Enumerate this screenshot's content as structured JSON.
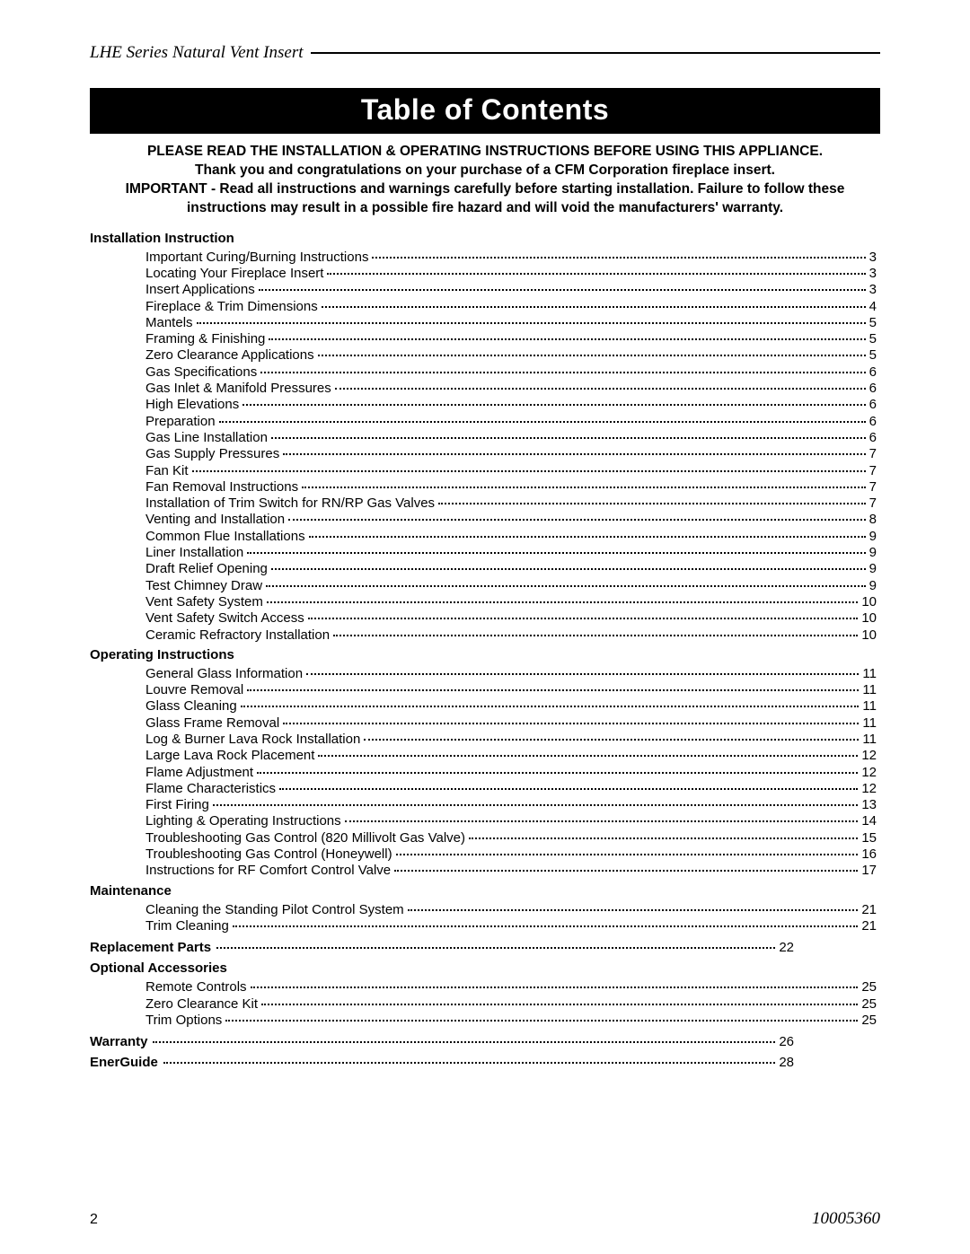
{
  "header": {
    "title": "LHE Series Natural Vent Insert"
  },
  "banner": "Table of Contents",
  "intro": {
    "line1": "PLEASE READ THE INSTALLATION & OPERATING INSTRUCTIONS BEFORE USING THIS APPLIANCE.",
    "line2": "Thank you and congratulations on your purchase of a CFM Corporation fireplace insert.",
    "line3": "IMPORTANT - Read all instructions and warnings carefully before starting installation. Failure to follow these",
    "line4": "instructions may result in a possible fire hazard and will void the manufacturers' warranty."
  },
  "sections": {
    "installation": {
      "heading": "Installation Instruction",
      "items": [
        {
          "label": "Important Curing/Burning Instructions",
          "page": "3"
        },
        {
          "label": "Locating Your Fireplace Insert",
          "page": "3"
        },
        {
          "label": "Insert Applications",
          "page": "3"
        },
        {
          "label": "Fireplace & Trim Dimensions",
          "page": "4"
        },
        {
          "label": "Mantels",
          "page": "5"
        },
        {
          "label": "Framing & Finishing",
          "page": "5"
        },
        {
          "label": "Zero Clearance Applications",
          "page": "5"
        },
        {
          "label": "Gas Specifications",
          "page": "6"
        },
        {
          "label": "Gas Inlet & Manifold Pressures",
          "page": "6"
        },
        {
          "label": "High Elevations",
          "page": "6"
        },
        {
          "label": "Preparation",
          "page": "6"
        },
        {
          "label": "Gas Line Installation",
          "page": "6"
        },
        {
          "label": "Gas Supply Pressures",
          "page": "7"
        },
        {
          "label": "Fan Kit",
          "page": "7"
        },
        {
          "label": "Fan Removal Instructions",
          "page": "7"
        },
        {
          "label": "Installation of Trim Switch for RN/RP Gas Valves",
          "page": "7"
        },
        {
          "label": "Venting and Installation",
          "page": "8"
        },
        {
          "label": "Common Flue Installations",
          "page": "9"
        },
        {
          "label": "Liner Installation",
          "page": "9"
        },
        {
          "label": "Draft Relief Opening",
          "page": "9"
        },
        {
          "label": "Test Chimney Draw",
          "page": "9"
        },
        {
          "label": "Vent Safety System",
          "page": "10"
        },
        {
          "label": "Vent Safety Switch Access",
          "page": "10"
        },
        {
          "label": "Ceramic Refractory Installation",
          "page": "10"
        }
      ]
    },
    "operating": {
      "heading": "Operating Instructions",
      "items": [
        {
          "label": "General Glass Information",
          "page": "11"
        },
        {
          "label": "Louvre Removal",
          "page": "11"
        },
        {
          "label": "Glass Cleaning",
          "page": "11"
        },
        {
          "label": "Glass Frame Removal",
          "page": "11"
        },
        {
          "label": "Log & Burner Lava Rock Installation",
          "page": "11"
        },
        {
          "label": "Large Lava Rock Placement",
          "page": "12"
        },
        {
          "label": "Flame Adjustment",
          "page": "12"
        },
        {
          "label": "Flame Characteristics",
          "page": "12"
        },
        {
          "label": "First Firing",
          "page": "13"
        },
        {
          "label": "Lighting & Operating Instructions",
          "page": "14"
        },
        {
          "label": "Troubleshooting Gas Control (820 Millivolt Gas Valve)",
          "page": "15"
        },
        {
          "label": "Troubleshooting  Gas Control (Honeywell)",
          "page": "16"
        },
        {
          "label": "Instructions for RF Comfort Control Valve",
          "page": "17"
        }
      ]
    },
    "maintenance": {
      "heading": "Maintenance",
      "items": [
        {
          "label": "Cleaning the Standing Pilot Control System",
          "page": "21"
        },
        {
          "label": "Trim Cleaning",
          "page": "21"
        }
      ]
    },
    "replacement": {
      "heading": "Replacement Parts",
      "page": "22"
    },
    "optional": {
      "heading": "Optional Accessories",
      "items": [
        {
          "label": "Remote Controls",
          "page": "25"
        },
        {
          "label": "Zero Clearance Kit",
          "page": "25"
        },
        {
          "label": "Trim Options",
          "page": "25"
        }
      ]
    },
    "warranty": {
      "heading": "Warranty",
      "page": "26"
    },
    "energuide": {
      "heading": "EnerGuide",
      "page": "28"
    }
  },
  "footer": {
    "pageNumber": "2",
    "docNumber": "10005360"
  }
}
